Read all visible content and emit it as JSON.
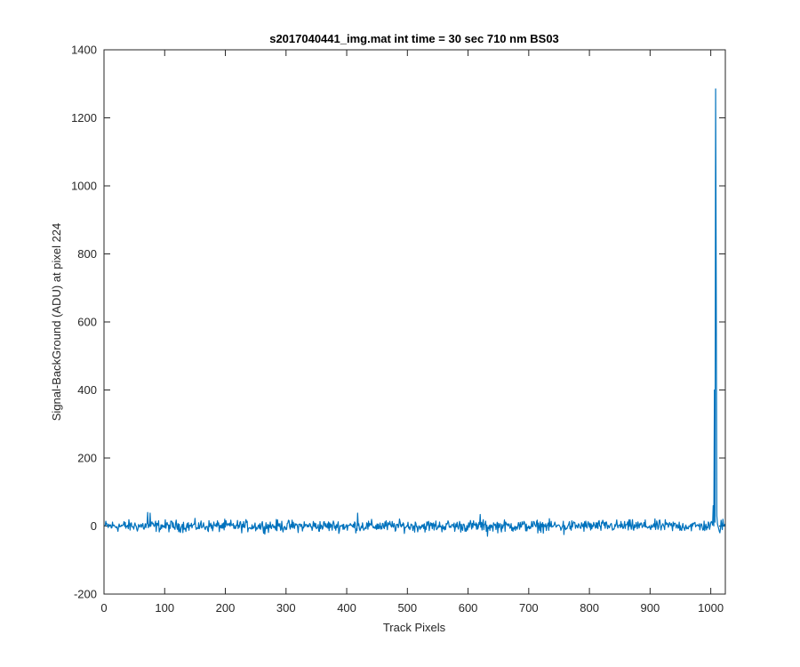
{
  "chart_data": {
    "type": "line",
    "title": "s2017040441_img.mat int time = 30 sec  710 nm BS03",
    "xlabel": "Track Pixels",
    "ylabel": "Signal-BackGround (ADU) at pixel 224",
    "xlim": [
      0,
      1024
    ],
    "ylim": [
      -200,
      1400
    ],
    "xticks": [
      0,
      100,
      200,
      300,
      400,
      500,
      600,
      700,
      800,
      900,
      1000
    ],
    "yticks": [
      -200,
      0,
      200,
      400,
      600,
      800,
      1000,
      1200,
      1400
    ],
    "grid": false,
    "box": true,
    "series": [
      {
        "color": "#0072BD",
        "noise_floor": {
          "x_range": [
            1,
            1024
          ],
          "mean": 0,
          "approx_min": -30,
          "approx_max": 40
        },
        "points": [
          {
            "x": 1,
            "y": 0
          },
          {
            "x": 72,
            "y": 40
          },
          {
            "x": 76,
            "y": 38
          },
          {
            "x": 418,
            "y": 38
          },
          {
            "x": 620,
            "y": 34
          },
          {
            "x": 632,
            "y": -30
          },
          {
            "x": 758,
            "y": -25
          },
          {
            "x": 985,
            "y": 5
          },
          {
            "x": 1000,
            "y": 10
          },
          {
            "x": 1004,
            "y": 60
          },
          {
            "x": 1006,
            "y": 400
          },
          {
            "x": 1008,
            "y": 1285
          },
          {
            "x": 1009,
            "y": 700
          },
          {
            "x": 1010,
            "y": 30
          },
          {
            "x": 1015,
            "y": -20
          },
          {
            "x": 1020,
            "y": 20
          },
          {
            "x": 1024,
            "y": 0
          }
        ]
      }
    ]
  }
}
